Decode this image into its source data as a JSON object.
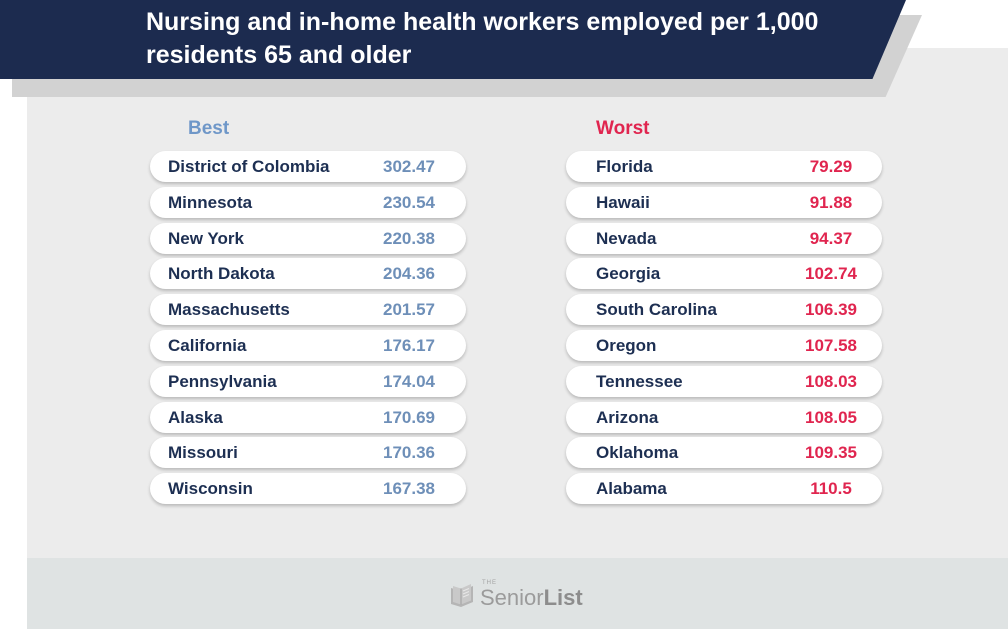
{
  "title": "Nursing and in-home health workers employed per 1,000 residents 65 and older",
  "best": {
    "label": "Best",
    "items": [
      {
        "state": "District of Colombia",
        "value": "302.47"
      },
      {
        "state": "Minnesota",
        "value": "230.54"
      },
      {
        "state": "New York",
        "value": "220.38"
      },
      {
        "state": "North Dakota",
        "value": "204.36"
      },
      {
        "state": "Massachusetts",
        "value": "201.57"
      },
      {
        "state": "California",
        "value": "176.17"
      },
      {
        "state": "Pennsylvania",
        "value": "174.04"
      },
      {
        "state": "Alaska",
        "value": "170.69"
      },
      {
        "state": "Missouri",
        "value": "170.36"
      },
      {
        "state": "Wisconsin",
        "value": "167.38"
      }
    ]
  },
  "worst": {
    "label": "Worst",
    "items": [
      {
        "state": "Florida",
        "value": "79.29"
      },
      {
        "state": "Hawaii",
        "value": "91.88"
      },
      {
        "state": "Nevada",
        "value": "94.37"
      },
      {
        "state": "Georgia",
        "value": "102.74"
      },
      {
        "state": "South Carolina",
        "value": "106.39"
      },
      {
        "state": "Oregon",
        "value": "107.58"
      },
      {
        "state": "Tennessee",
        "value": "108.03"
      },
      {
        "state": "Arizona",
        "value": "108.05"
      },
      {
        "state": "Oklahoma",
        "value": "109.35"
      },
      {
        "state": "Alabama",
        "value": "110.5"
      }
    ]
  },
  "logo": {
    "prefix": "THE",
    "name_light": "Senior",
    "name_bold": "List",
    "icon": "book-icon"
  },
  "colors": {
    "banner": "#1c2b4f",
    "best": "#6f97c8",
    "worst": "#e0254f",
    "state_text": "#1d2f52"
  }
}
